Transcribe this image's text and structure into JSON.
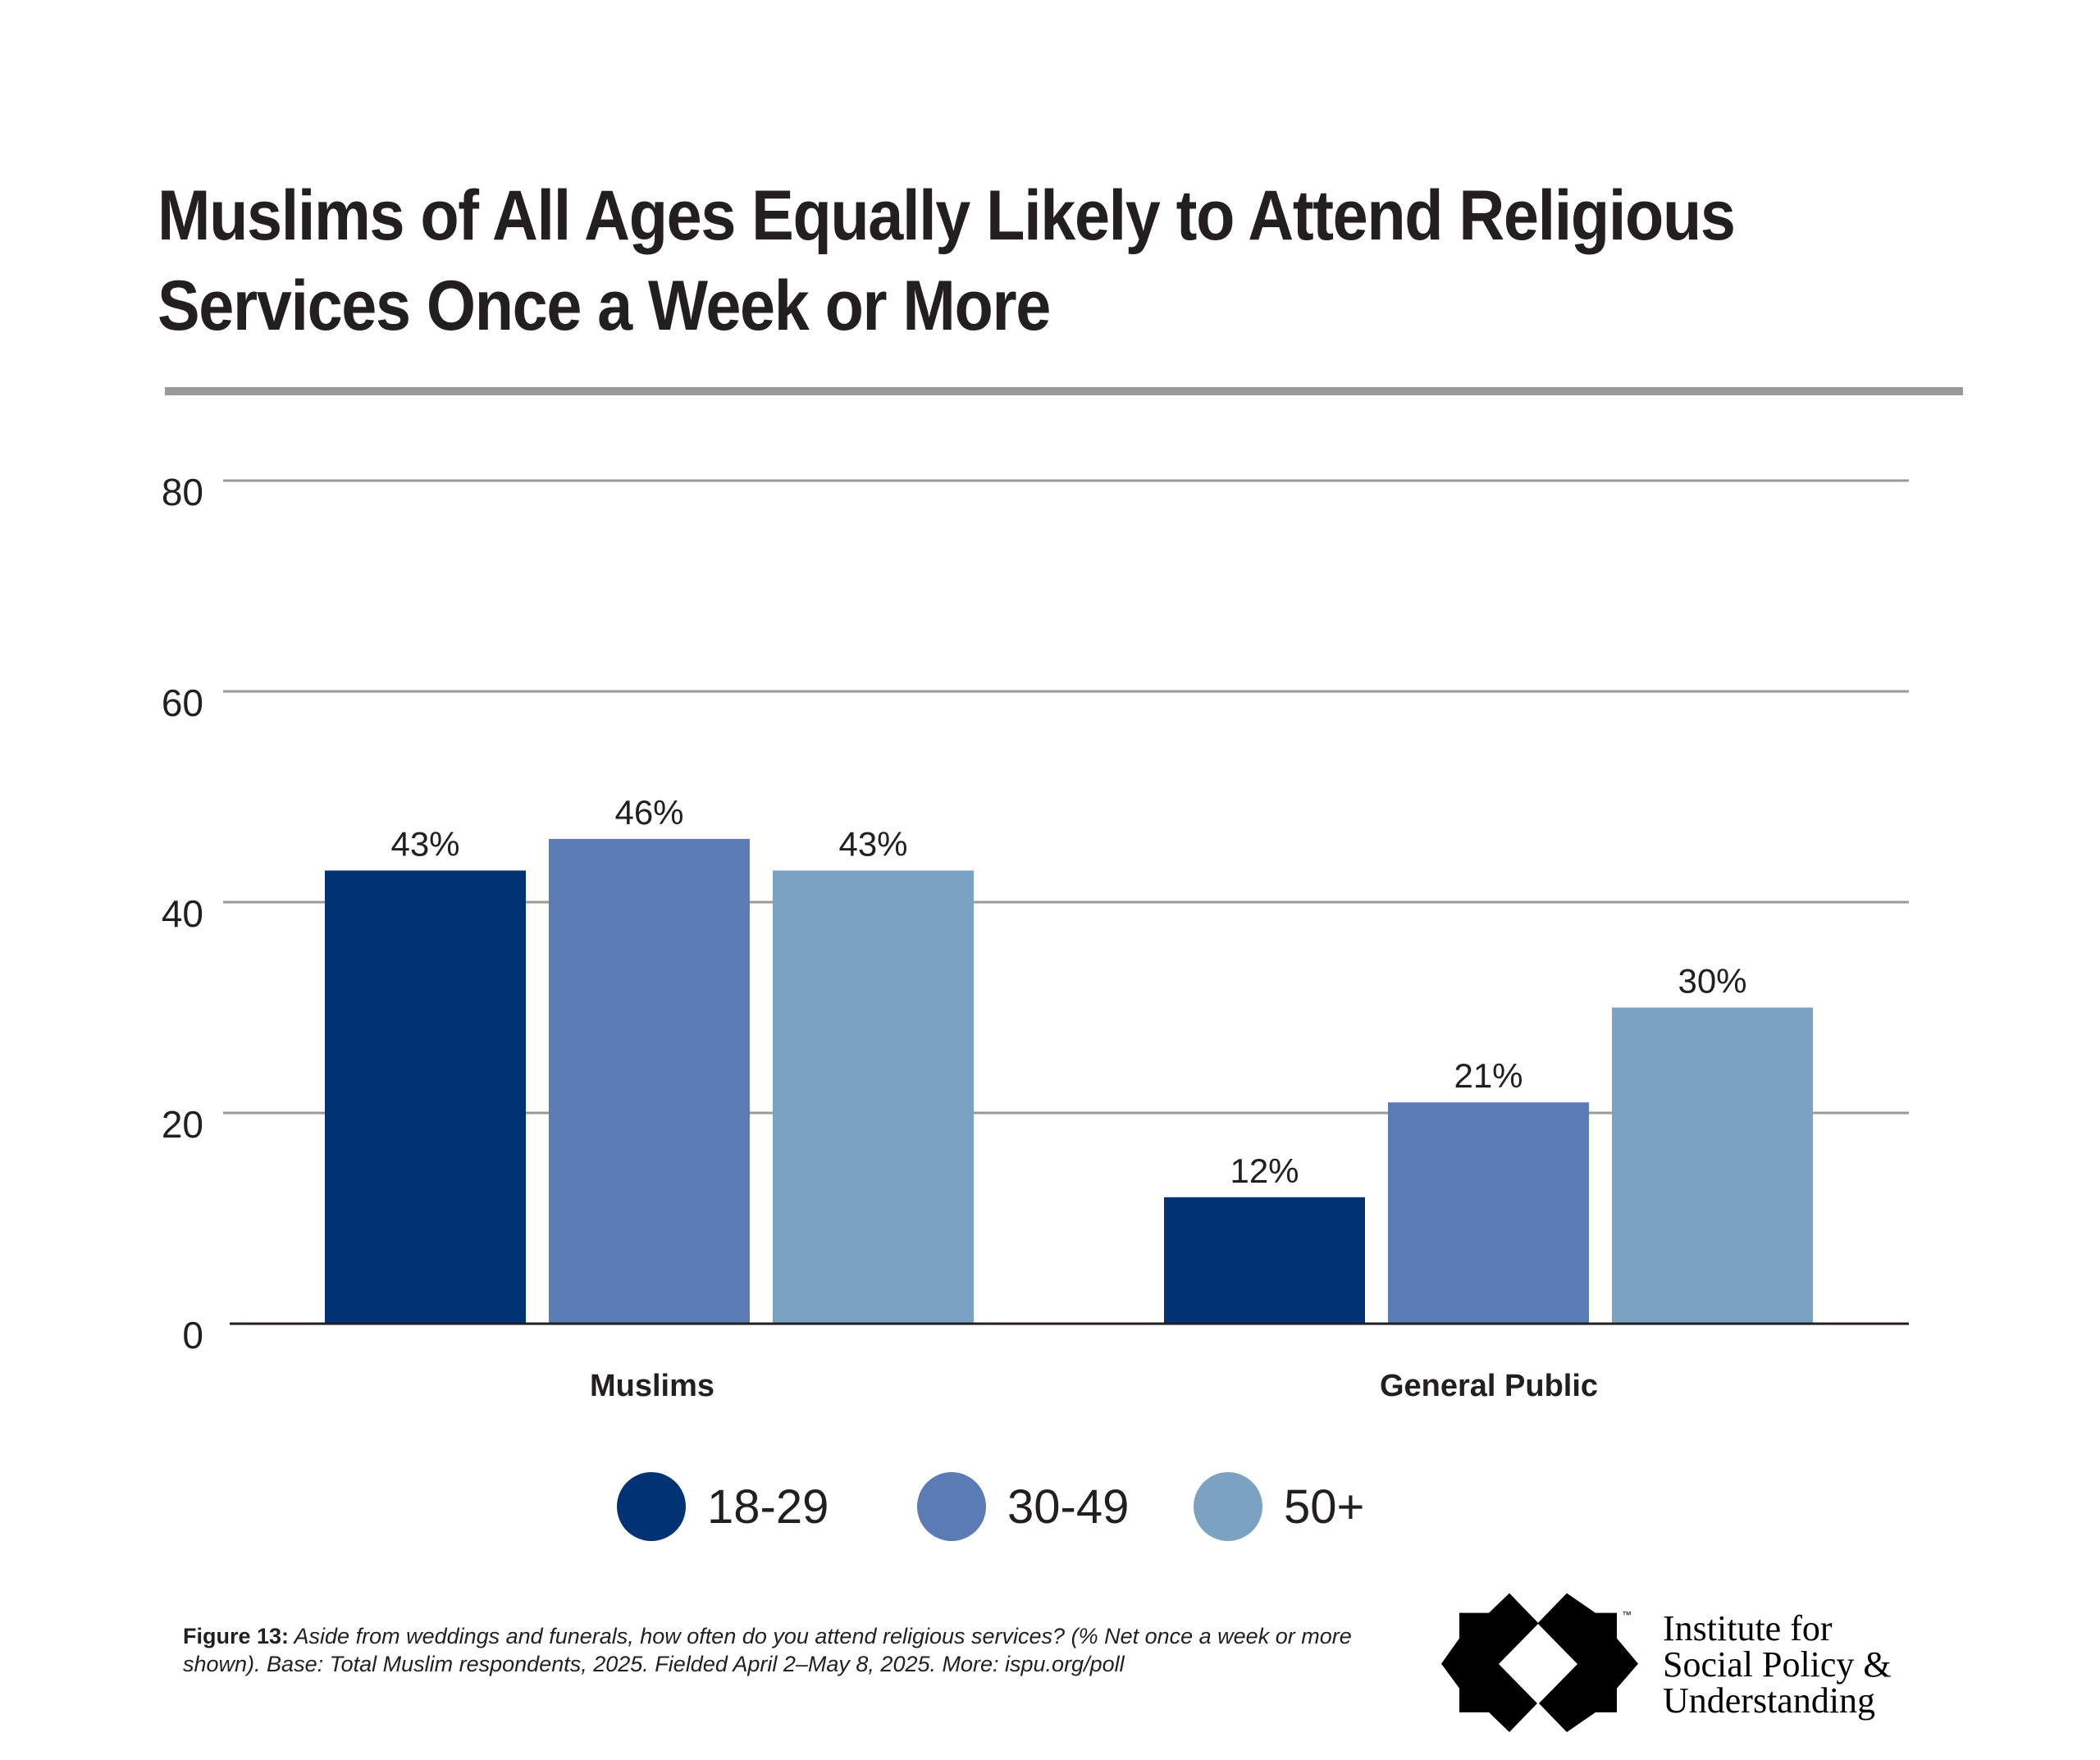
{
  "title": {
    "line1": "Muslims of All Ages Equally Likely to Attend Religious",
    "line2": "Services Once a Week or More"
  },
  "chart_data": {
    "type": "bar",
    "title": "Muslims of All Ages Equally Likely to Attend Religious Services Once a Week or More",
    "xlabel": "",
    "ylabel": "",
    "categories": [
      "Muslims",
      "General Public"
    ],
    "series": [
      {
        "name": "18-29",
        "color": "#003274",
        "values": [
          43,
          12
        ],
        "labels": [
          "43%",
          "12%"
        ]
      },
      {
        "name": "30-49",
        "color": "#5b7bb4",
        "values": [
          46,
          21
        ],
        "labels": [
          "46%",
          "21%"
        ]
      },
      {
        "name": "50+",
        "color": "#7ca2c2",
        "values": [
          43,
          30
        ],
        "labels": [
          "43%",
          "30%"
        ]
      }
    ],
    "ylim": [
      0,
      80
    ],
    "yticks": [
      0,
      20,
      40,
      60,
      80
    ],
    "ytick_labels": [
      "0",
      "20",
      "40",
      "60",
      "80"
    ],
    "grid": true,
    "legend_position": "bottom-center"
  },
  "legend": [
    {
      "label": "18-29",
      "color": "#003274"
    },
    {
      "label": "30-49",
      "color": "#5b7bb4"
    },
    {
      "label": "50+",
      "color": "#7ca2c2"
    }
  ],
  "note": {
    "lead": "Figure 13:",
    "body": " Aside from weddings and funerals, how often do you attend religious services? (% Net once a week or more shown). Base: Total Muslim respondents, 2025. Fielded April 2–May 8, 2025. More: ispu.org/poll"
  },
  "logo": {
    "line1": "Institute for",
    "line2": "Social Policy &",
    "line3": "Understanding",
    "trademark": "™"
  },
  "colors": {
    "gridline": "#9a9a9a",
    "baseline": "#231f20",
    "divider": "#999999"
  }
}
